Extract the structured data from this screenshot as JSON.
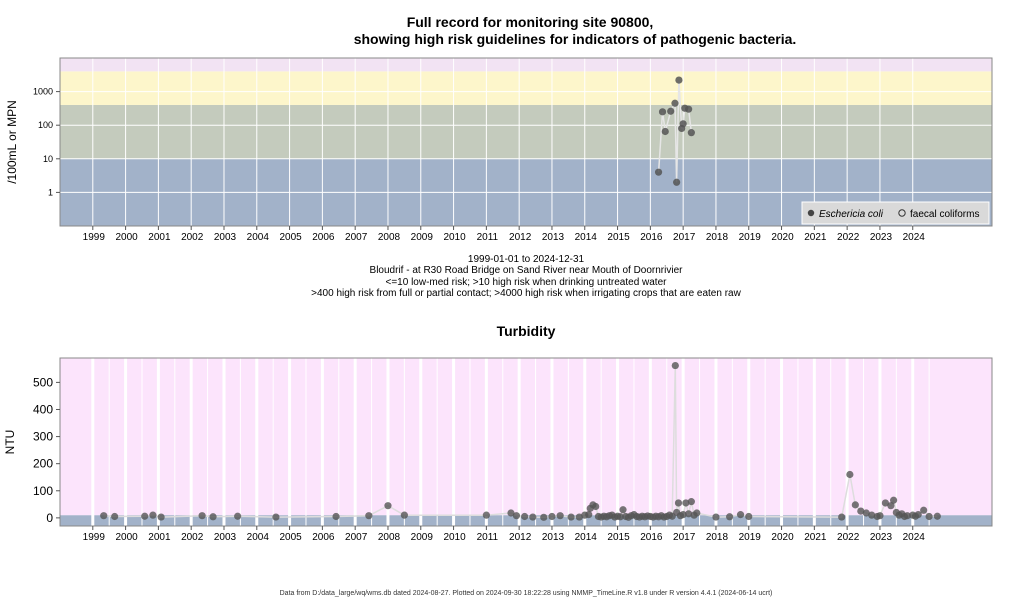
{
  "page": {
    "footer": "Data from D:/data_large/wq/wms.db dated 2024-08-27. Plotted on 2024-09-30 18:22:28 using NMMP_TimeLine.R v1.8 under R version 4.4.1 (2024-06-14 ucrt)"
  },
  "chart_data": [
    {
      "type": "scatter",
      "title_line1": "Full record for monitoring site 90800,",
      "title_line2": "showing high risk guidelines for indicators of pathogenic bacteria.",
      "ylabel": "/100mL or MPN",
      "y_scale": "log10",
      "yticks": [
        1,
        10,
        100,
        1000
      ],
      "ytick_labels": [
        "1",
        "10",
        "100",
        "1000"
      ],
      "ylim": [
        0.1,
        10000
      ],
      "xlim": [
        "1998-01-01",
        "2026-06-01"
      ],
      "xtick_labels": [
        "1999",
        "2000",
        "2001",
        "2002",
        "2003",
        "2004",
        "2005",
        "2006",
        "2007",
        "2008",
        "2009",
        "2010",
        "2011",
        "2012",
        "2013",
        "2014",
        "2015",
        "2016",
        "2017",
        "2018",
        "2019",
        "2020",
        "2021",
        "2022",
        "2023",
        "2024"
      ],
      "bands": [
        {
          "from": 0.1,
          "to": 10,
          "color": "#a2b2c9"
        },
        {
          "from": 10,
          "to": 400,
          "color": "#c4cbbd"
        },
        {
          "from": 400,
          "to": 4000,
          "color": "#fdf6cb"
        },
        {
          "from": 4000,
          "to": 10000,
          "color": "#f2e3f3"
        }
      ],
      "caption_lines": [
        "1999-01-01 to 2024-12-31",
        "Bloudrif - at R30 Road Bridge on Sand River near Mouth of Doornrivier",
        "<=10 low-med risk; >10 high risk when drinking untreated water",
        ">400 high risk from full or partial contact; >4000 high risk when irrigating crops that are eaten raw"
      ],
      "legend_position": "bottom-right",
      "series": [
        {
          "name": "Eschericia coli",
          "marker": "filled-circle",
          "color": "#555555",
          "points": [
            {
              "x": "2016-04-01",
              "y": 4
            },
            {
              "x": "2016-05-15",
              "y": 250
            },
            {
              "x": "2016-06-15",
              "y": 65
            },
            {
              "x": "2016-08-15",
              "y": 260
            },
            {
              "x": "2016-10-01",
              "y": 450
            },
            {
              "x": "2016-10-20",
              "y": 2
            },
            {
              "x": "2016-11-15",
              "y": 2200
            },
            {
              "x": "2016-12-15",
              "y": 80
            },
            {
              "x": "2017-01-01",
              "y": 110
            },
            {
              "x": "2017-01-20",
              "y": 320
            },
            {
              "x": "2017-03-01",
              "y": 300
            },
            {
              "x": "2017-04-01",
              "y": 60
            }
          ]
        },
        {
          "name": "faecal coliforms",
          "marker": "open-circle",
          "color": "#333333",
          "points": []
        }
      ]
    },
    {
      "type": "scatter",
      "title": "Turbidity",
      "ylabel": "NTU",
      "yticks": [
        0,
        100,
        200,
        300,
        400,
        500
      ],
      "ytick_labels": [
        "0",
        "100",
        "200",
        "300",
        "400",
        "500"
      ],
      "ylim": [
        -30,
        590
      ],
      "xlim": [
        "1998-01-01",
        "2026-06-01"
      ],
      "xtick_labels": [
        "1999",
        "2000",
        "2001",
        "2002",
        "2003",
        "2004",
        "2005",
        "2006",
        "2007",
        "2008",
        "2009",
        "2010",
        "2011",
        "2012",
        "2013",
        "2014",
        "2015",
        "2016",
        "2017",
        "2018",
        "2019",
        "2020",
        "2021",
        "2022",
        "2023",
        "2024"
      ],
      "bands": [
        {
          "from": -30,
          "to": 10,
          "color": "#a2b2c9"
        },
        {
          "from": 10,
          "to": 590,
          "color": "#fce4fc"
        }
      ],
      "series": [
        {
          "name": "",
          "color": "#555555",
          "points": [
            {
              "x": "1999-05-01",
              "y": 8
            },
            {
              "x": "1999-09-01",
              "y": 5
            },
            {
              "x": "2000-08-01",
              "y": 6
            },
            {
              "x": "2000-11-01",
              "y": 10
            },
            {
              "x": "2001-02-01",
              "y": 3
            },
            {
              "x": "2002-05-01",
              "y": 8
            },
            {
              "x": "2002-09-01",
              "y": 4
            },
            {
              "x": "2003-06-01",
              "y": 6
            },
            {
              "x": "2004-08-01",
              "y": 3
            },
            {
              "x": "2006-06-01",
              "y": 5
            },
            {
              "x": "2007-06-01",
              "y": 8
            },
            {
              "x": "2008-01-01",
              "y": 45
            },
            {
              "x": "2008-07-01",
              "y": 10
            },
            {
              "x": "2011-01-01",
              "y": 10
            },
            {
              "x": "2011-10-01",
              "y": 18
            },
            {
              "x": "2011-12-01",
              "y": 8
            },
            {
              "x": "2012-03-01",
              "y": 5
            },
            {
              "x": "2012-06-01",
              "y": 3
            },
            {
              "x": "2012-10-01",
              "y": 2
            },
            {
              "x": "2013-01-01",
              "y": 5
            },
            {
              "x": "2013-04-01",
              "y": 8
            },
            {
              "x": "2013-08-01",
              "y": 3
            },
            {
              "x": "2013-11-01",
              "y": 3
            },
            {
              "x": "2014-01-01",
              "y": 10
            },
            {
              "x": "2014-02-15",
              "y": 12
            },
            {
              "x": "2014-03-01",
              "y": 35
            },
            {
              "x": "2014-04-01",
              "y": 48
            },
            {
              "x": "2014-05-01",
              "y": 42
            },
            {
              "x": "2014-06-01",
              "y": 5
            },
            {
              "x": "2014-07-01",
              "y": 3
            },
            {
              "x": "2014-08-01",
              "y": 6
            },
            {
              "x": "2014-09-01",
              "y": 4
            },
            {
              "x": "2014-10-01",
              "y": 8
            },
            {
              "x": "2014-11-01",
              "y": 10
            },
            {
              "x": "2014-12-01",
              "y": 3
            },
            {
              "x": "2015-01-01",
              "y": 6
            },
            {
              "x": "2015-02-01",
              "y": 4
            },
            {
              "x": "2015-03-01",
              "y": 30
            },
            {
              "x": "2015-04-01",
              "y": 5
            },
            {
              "x": "2015-05-01",
              "y": 2
            },
            {
              "x": "2015-06-01",
              "y": 8
            },
            {
              "x": "2015-07-01",
              "y": 12
            },
            {
              "x": "2015-08-01",
              "y": 5
            },
            {
              "x": "2015-09-01",
              "y": 3
            },
            {
              "x": "2015-10-01",
              "y": 6
            },
            {
              "x": "2015-11-01",
              "y": 4
            },
            {
              "x": "2015-12-01",
              "y": 7
            },
            {
              "x": "2016-01-01",
              "y": 5
            },
            {
              "x": "2016-02-01",
              "y": 3
            },
            {
              "x": "2016-03-01",
              "y": 6
            },
            {
              "x": "2016-04-01",
              "y": 4
            },
            {
              "x": "2016-05-01",
              "y": 8
            },
            {
              "x": "2016-06-01",
              "y": 3
            },
            {
              "x": "2016-07-01",
              "y": 5
            },
            {
              "x": "2016-08-01",
              "y": 10
            },
            {
              "x": "2016-09-01",
              "y": 6
            },
            {
              "x": "2016-10-05",
              "y": 562
            },
            {
              "x": "2016-10-20",
              "y": 20
            },
            {
              "x": "2016-11-10",
              "y": 55
            },
            {
              "x": "2016-12-01",
              "y": 8
            },
            {
              "x": "2017-01-01",
              "y": 12
            },
            {
              "x": "2017-02-01",
              "y": 55
            },
            {
              "x": "2017-03-01",
              "y": 15
            },
            {
              "x": "2017-04-01",
              "y": 60
            },
            {
              "x": "2017-05-01",
              "y": 10
            },
            {
              "x": "2017-06-01",
              "y": 18
            },
            {
              "x": "2018-01-01",
              "y": 3
            },
            {
              "x": "2018-06-01",
              "y": 4
            },
            {
              "x": "2018-10-01",
              "y": 12
            },
            {
              "x": "2019-01-01",
              "y": 5
            },
            {
              "x": "2021-11-01",
              "y": 3
            },
            {
              "x": "2022-02-01",
              "y": 160
            },
            {
              "x": "2022-04-01",
              "y": 48
            },
            {
              "x": "2022-06-01",
              "y": 25
            },
            {
              "x": "2022-08-01",
              "y": 18
            },
            {
              "x": "2022-10-01",
              "y": 10
            },
            {
              "x": "2022-12-01",
              "y": 5
            },
            {
              "x": "2023-01-01",
              "y": 8
            },
            {
              "x": "2023-03-01",
              "y": 55
            },
            {
              "x": "2023-05-01",
              "y": 45
            },
            {
              "x": "2023-06-01",
              "y": 65
            },
            {
              "x": "2023-07-01",
              "y": 20
            },
            {
              "x": "2023-08-01",
              "y": 10
            },
            {
              "x": "2023-09-01",
              "y": 15
            },
            {
              "x": "2023-10-01",
              "y": 5
            },
            {
              "x": "2023-11-01",
              "y": 8
            },
            {
              "x": "2024-01-01",
              "y": 10
            },
            {
              "x": "2024-02-01",
              "y": 6
            },
            {
              "x": "2024-03-01",
              "y": 12
            },
            {
              "x": "2024-05-01",
              "y": 28
            },
            {
              "x": "2024-07-01",
              "y": 5
            },
            {
              "x": "2024-10-01",
              "y": 6
            }
          ]
        }
      ]
    }
  ]
}
